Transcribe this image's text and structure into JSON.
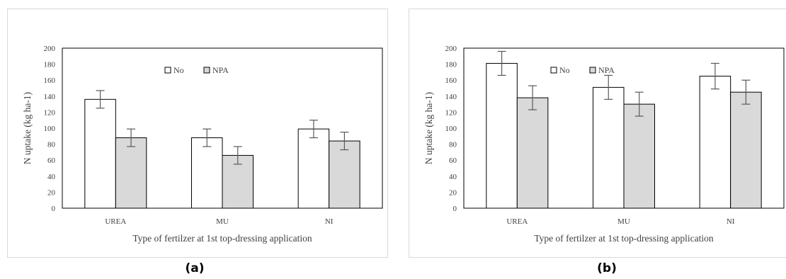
{
  "captions": [
    "(a)",
    "(b)"
  ],
  "chart_data": [
    {
      "type": "bar",
      "categories": [
        "UREA",
        "MU",
        "NI"
      ],
      "series": [
        {
          "name": "No",
          "values": [
            136,
            88,
            99
          ],
          "errors": [
            11,
            11,
            11
          ],
          "color": "#ffffff"
        },
        {
          "name": "NPA",
          "values": [
            88,
            66,
            84
          ],
          "errors": [
            11,
            11,
            11
          ],
          "color": "#d9d9d9"
        }
      ],
      "title": "",
      "xlabel": "Type of  fertilzer at 1st top-dressing application",
      "ylabel": "N uptake (kg ha-1)",
      "ylim": [
        0,
        200
      ],
      "yticks": [
        0,
        20,
        40,
        60,
        80,
        100,
        120,
        140,
        160,
        180,
        200
      ],
      "grid": false,
      "legend": "top-center"
    },
    {
      "type": "bar",
      "categories": [
        "UREA",
        "MU",
        "NI"
      ],
      "series": [
        {
          "name": "No",
          "values": [
            181,
            151,
            165
          ],
          "errors": [
            15,
            15,
            16
          ],
          "color": "#ffffff"
        },
        {
          "name": "NPA",
          "values": [
            138,
            130,
            145
          ],
          "errors": [
            15,
            15,
            15
          ],
          "color": "#d9d9d9"
        }
      ],
      "title": "",
      "xlabel": "Type of  fertilzer at 1st top-dressing application",
      "ylabel": "N uptake (kg ha-1)",
      "ylim": [
        0,
        200
      ],
      "yticks": [
        0,
        20,
        40,
        60,
        80,
        100,
        120,
        140,
        160,
        180,
        200
      ],
      "grid": false,
      "legend": "top-center"
    }
  ]
}
